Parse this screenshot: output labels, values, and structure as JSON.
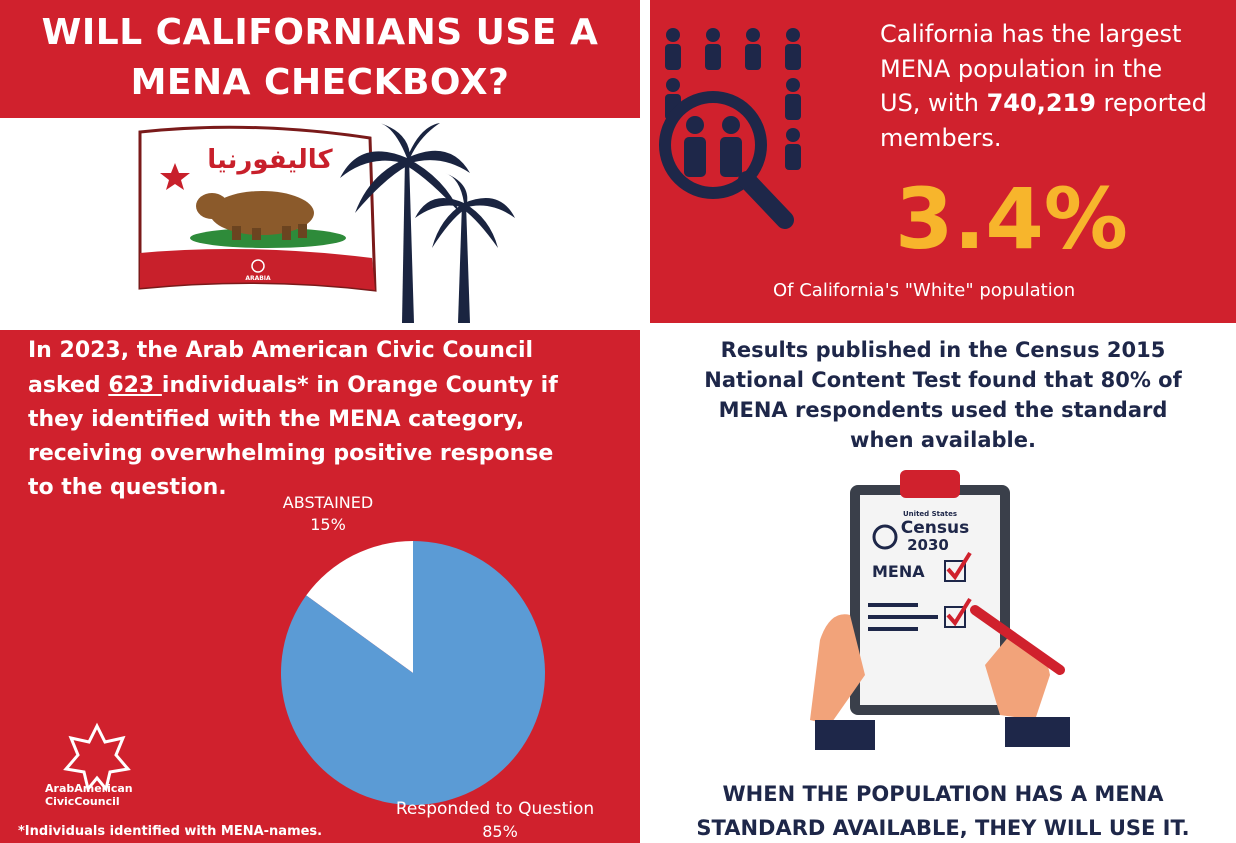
{
  "title": {
    "line1": "WILL CALIFORNIANS USE A",
    "line2": "MENA CHECKBOX?"
  },
  "flag": {
    "arabic_text": "كاليفورنيا",
    "small_text": "ARABIA"
  },
  "top_right": {
    "line1": "California has the largest",
    "line2": "MENA population in the",
    "line3_prefix": "US, with ",
    "line3_number": "740,219",
    "line3_suffix": " reported",
    "line4": "members.",
    "stat_value": "3.4%",
    "stat_caption": "Of California's \"White\" population"
  },
  "bottom_left": {
    "line1": "In 2023, the Arab American Civic Council",
    "line2_prefix": "asked ",
    "line2_number": "623 ",
    "line2_suffix": "individuals* in Orange County if",
    "line3": "they identified with the MENA category,",
    "line4": "receiving overwhelming positive response",
    "line5": "to the question.",
    "footnote": "*Individuals identified with MENA-names.",
    "logo_line1": "ArabAmerican",
    "logo_line2": "CivicCouncil"
  },
  "chart_data": {
    "type": "pie",
    "categories": [
      "ABSTAINED",
      "Responded to Question"
    ],
    "values": [
      15,
      85
    ],
    "value_labels": [
      "15%",
      "85%"
    ],
    "colors": [
      "#ffffff",
      "#5b9bd5"
    ]
  },
  "bottom_right": {
    "line1": "Results published in the Census 2015",
    "line2": "National Content Test found that 80% of",
    "line3": "MENA respondents used the standard",
    "line4": "when available.",
    "clipboard_small": "United States",
    "clipboard_census": "Census",
    "clipboard_year": "2030",
    "clipboard_mena": "MENA",
    "conclusion1": "WHEN THE POPULATION HAS A MENA",
    "conclusion2": "STANDARD AVAILABLE, THEY WILL USE IT."
  },
  "colors": {
    "brand_red": "#d0212d",
    "navy": "#1e2749",
    "gold": "#f7b52c",
    "pie_blue": "#5b9bd5"
  }
}
